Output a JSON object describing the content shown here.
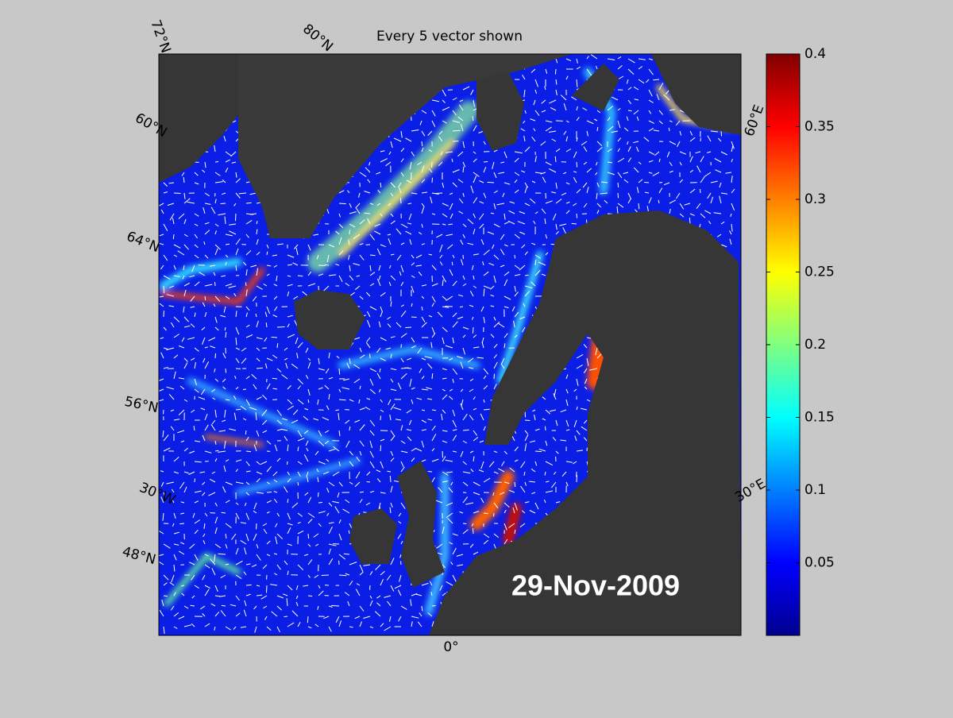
{
  "title": "Every 5 vector shown",
  "date": "29-Nov-2009",
  "graticule_labels": [
    "72°N",
    "80°N",
    "60°N",
    "64°N",
    "56°N",
    "30°W",
    "48°N",
    "0°",
    "30°E",
    "60°E"
  ],
  "colorbar": {
    "lim": [
      0,
      0.4
    ],
    "ticks": [
      0.05,
      0.1,
      0.15,
      0.2,
      0.25,
      0.3,
      0.35,
      0.4
    ]
  }
}
